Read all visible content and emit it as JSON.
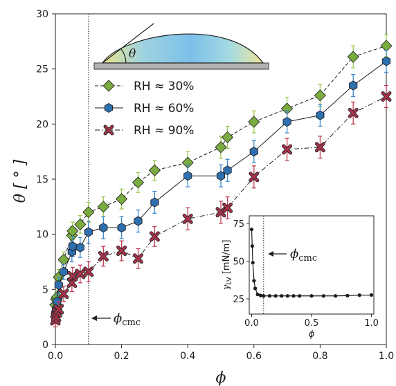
{
  "chart_data": [
    {
      "type": "scatter",
      "title": "",
      "xlabel": "ϕ",
      "ylabel": "θ [ ° ]",
      "xlim": [
        0.0,
        1.0
      ],
      "ylim": [
        0,
        30
      ],
      "xticks": [
        "0.0",
        "0.2",
        "0.4",
        "0.6",
        "0.8",
        "1.0"
      ],
      "yticks": [
        "0",
        "5",
        "10",
        "15",
        "20",
        "25",
        "30"
      ],
      "grid": false,
      "legend_position": "top-left",
      "cmc_line_x": 0.1,
      "cmc_label": "ϕcmc",
      "cmc_label_main": "ϕ",
      "cmc_label_sub": "cmc",
      "inset_theta_label": "θ",
      "series": [
        {
          "name": "RH ≈ 30%",
          "color": "#7aab3e",
          "errcolor": "#9bc94f",
          "marker": "diamond",
          "linestyle": "dashed",
          "x": [
            0.0,
            0.002,
            0.005,
            0.01,
            0.025,
            0.05,
            0.052,
            0.075,
            0.1,
            0.145,
            0.2,
            0.25,
            0.3,
            0.4,
            0.5,
            0.52,
            0.6,
            0.7,
            0.8,
            0.9,
            1.0
          ],
          "y": [
            3.6,
            4.1,
            4.3,
            6.1,
            7.7,
            9.9,
            10.3,
            10.9,
            12.0,
            12.5,
            13.2,
            14.7,
            15.8,
            16.5,
            17.9,
            18.8,
            20.2,
            21.4,
            22.6,
            26.1,
            27.1
          ],
          "err": [
            0.6,
            0.6,
            0.6,
            0.7,
            0.7,
            0.8,
            0.8,
            0.8,
            0.9,
            0.9,
            0.9,
            0.9,
            0.9,
            1.0,
            1.0,
            1.0,
            1.0,
            1.0,
            1.0,
            1.0,
            1.0
          ]
        },
        {
          "name": "RH ≈ 60%",
          "color": "#2e6fae",
          "errcolor": "#3a8ad0",
          "marker": "hexagon",
          "linestyle": "solid",
          "x": [
            0.0,
            0.002,
            0.005,
            0.01,
            0.025,
            0.05,
            0.052,
            0.075,
            0.1,
            0.145,
            0.2,
            0.25,
            0.3,
            0.4,
            0.5,
            0.52,
            0.6,
            0.7,
            0.8,
            0.9,
            1.0
          ],
          "y": [
            2.8,
            3.2,
            3.9,
            5.4,
            6.6,
            8.4,
            8.9,
            8.8,
            10.2,
            10.6,
            10.6,
            11.2,
            12.9,
            15.3,
            15.3,
            15.8,
            17.5,
            20.2,
            20.8,
            23.5,
            25.7
          ],
          "err": [
            0.6,
            0.6,
            0.6,
            0.7,
            0.7,
            0.9,
            0.9,
            0.9,
            1.0,
            1.0,
            1.0,
            1.0,
            1.0,
            1.0,
            1.0,
            1.0,
            1.0,
            1.0,
            1.0,
            1.0,
            1.0
          ]
        },
        {
          "name": "RH ≈ 90%",
          "color": "#a8324a",
          "errcolor": "#c23a52",
          "marker": "x",
          "linestyle": "dashdot",
          "x": [
            0.0,
            0.002,
            0.005,
            0.01,
            0.025,
            0.05,
            0.052,
            0.075,
            0.1,
            0.145,
            0.2,
            0.25,
            0.3,
            0.4,
            0.5,
            0.52,
            0.6,
            0.7,
            0.8,
            0.9,
            1.0
          ],
          "y": [
            2.2,
            2.5,
            2.9,
            3.2,
            4.6,
            5.6,
            6.2,
            6.4,
            6.6,
            8.0,
            8.5,
            7.8,
            9.8,
            11.4,
            12.0,
            12.4,
            15.2,
            17.7,
            17.9,
            21.0,
            22.5
          ],
          "err": [
            0.6,
            0.6,
            0.6,
            0.7,
            0.7,
            0.8,
            0.8,
            0.8,
            0.9,
            0.9,
            0.9,
            0.9,
            0.9,
            1.0,
            1.0,
            1.0,
            1.0,
            1.0,
            1.0,
            1.0,
            1.0
          ]
        }
      ]
    },
    {
      "type": "line",
      "title": "",
      "xlabel": "ϕ",
      "ylabel": "γLV [mN/m]",
      "ylabel_main": "γ",
      "ylabel_sub": "LV",
      "ylabel_unit": " [mN/m]",
      "xlim": [
        -0.02,
        1.02
      ],
      "ylim": [
        15,
        80
      ],
      "xticks": [
        "0.0",
        "0.5",
        "1.0"
      ],
      "yticks": [
        "25",
        "50",
        "75"
      ],
      "cmc_line_x": 0.1,
      "series": [
        {
          "x": [
            0.0,
            0.005,
            0.01,
            0.02,
            0.03,
            0.05,
            0.075,
            0.1,
            0.15,
            0.2,
            0.25,
            0.3,
            0.35,
            0.4,
            0.5,
            0.6,
            0.7,
            0.8,
            0.9,
            1.0
          ],
          "y": [
            71,
            60,
            49,
            37,
            32,
            28,
            27.3,
            27,
            27,
            27,
            27,
            27,
            27,
            27,
            27,
            27,
            27,
            27.2,
            27.5,
            27.6
          ]
        }
      ]
    }
  ]
}
